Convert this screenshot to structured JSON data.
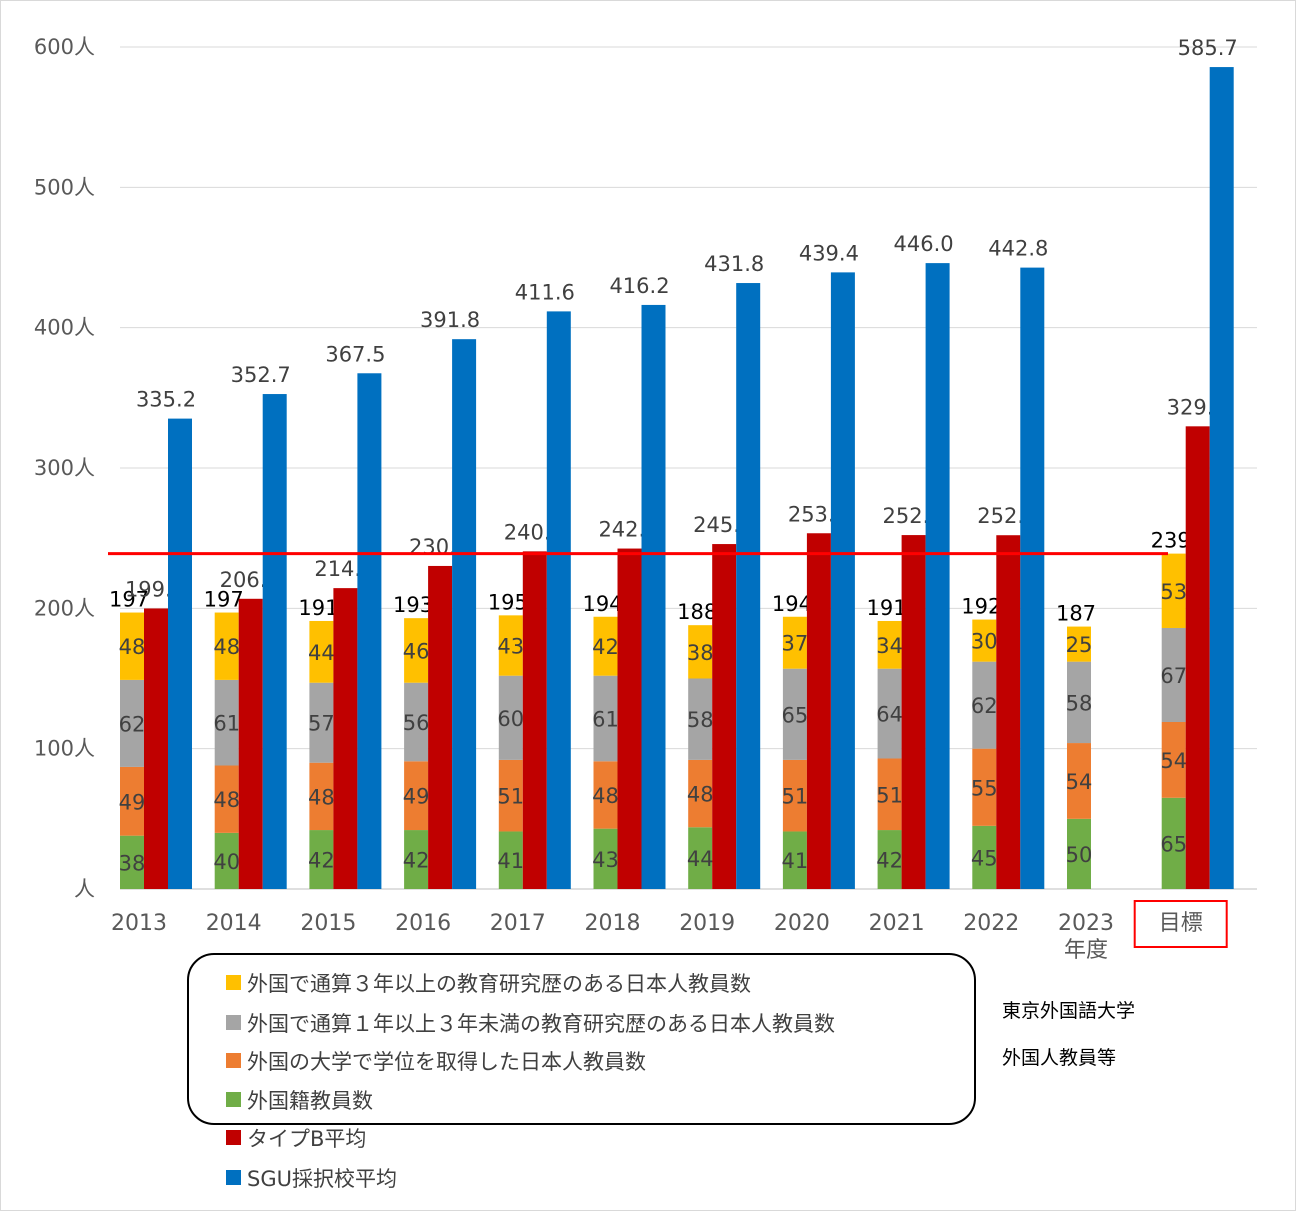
{
  "chart_data": {
    "type": "bar",
    "categories": [
      "2013",
      "2014",
      "2015",
      "2016",
      "2017",
      "2018",
      "2019",
      "2020",
      "2021",
      "2022",
      "2023",
      "目標"
    ],
    "x_unit_label": "年度",
    "y_tick_labels": [
      "人",
      "100人",
      "200人",
      "300人",
      "400人",
      "500人",
      "600人"
    ],
    "ylim": [
      0,
      600
    ],
    "stacked_series": [
      {
        "name": "外国籍教員数",
        "color": "#70AD47",
        "values": [
          38,
          40,
          42,
          42,
          41,
          43,
          44,
          41,
          42,
          45,
          50,
          65
        ]
      },
      {
        "name": "外国の大学で学位を取得した日本人教員数",
        "color": "#ED7D31",
        "values": [
          49,
          48,
          48,
          49,
          51,
          48,
          48,
          51,
          51,
          55,
          54,
          54
        ]
      },
      {
        "name": "外国で通算１年以上３年未満の教育研究歴のある日本人教員数",
        "color": "#A5A5A5",
        "values": [
          62,
          61,
          57,
          56,
          60,
          61,
          58,
          65,
          64,
          62,
          58,
          67
        ]
      },
      {
        "name": "外国で通算３年以上の教育研究歴のある日本人教員数",
        "color": "#FFC000",
        "values": [
          48,
          48,
          44,
          46,
          43,
          42,
          38,
          37,
          34,
          30,
          25,
          53
        ]
      }
    ],
    "stack_totals": [
      "197",
      "197",
      "191",
      "193",
      "195",
      "194",
      "188",
      "194",
      "191",
      "192",
      "187",
      "239"
    ],
    "series": [
      {
        "name": "タイプB平均",
        "color": "#C00000",
        "values": [
          199.9,
          206.8,
          214.4,
          230.2,
          240.6,
          242.6,
          245.8,
          253.5,
          252.2,
          252.1,
          null,
          329.7
        ],
        "labels": [
          "199.9",
          "206.8",
          "214.4",
          "230.2",
          "240.6",
          "242.6",
          "245.8",
          "253.5",
          "252.2",
          "252.1",
          "",
          "329.7"
        ]
      },
      {
        "name": "SGU採択校平均",
        "color": "#0070C0",
        "values": [
          335.2,
          352.7,
          367.5,
          391.8,
          411.6,
          416.2,
          431.8,
          439.4,
          446.0,
          442.8,
          null,
          585.7
        ],
        "labels": [
          "335.2",
          "352.7",
          "367.5",
          "391.8",
          "411.6",
          "416.2",
          "431.8",
          "439.4",
          "446.0",
          "442.8",
          "",
          "585.7"
        ]
      }
    ],
    "reference_line": {
      "value": 239,
      "color": "#FF0000"
    },
    "highlight_category": "目標",
    "legend_position": "bottom-left",
    "grid": true
  },
  "side_text": {
    "university": "東京外国語大学",
    "category": "外国人教員等"
  },
  "legend_items": [
    {
      "name": "外国で通算３年以上の教育研究歴のある日本人教員数",
      "color": "#FFC000"
    },
    {
      "name": "外国で通算１年以上３年未満の教育研究歴のある日本人教員数",
      "color": "#A5A5A5"
    },
    {
      "name": "外国の大学で学位を取得した日本人教員数",
      "color": "#ED7D31"
    },
    {
      "name": "外国籍教員数",
      "color": "#70AD47"
    },
    {
      "name": "タイプB平均",
      "color": "#C00000"
    },
    {
      "name": "SGU採択校平均",
      "color": "#0070C0"
    }
  ]
}
